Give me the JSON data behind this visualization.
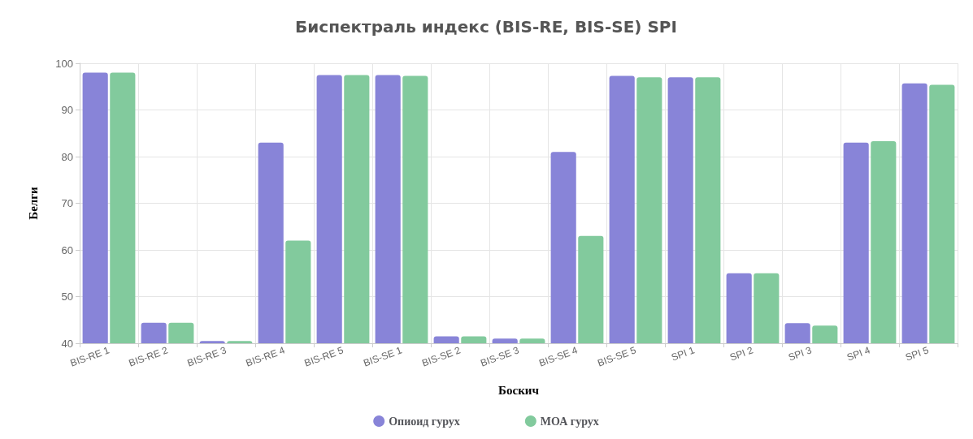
{
  "chart_data": {
    "type": "bar",
    "title": "Биспектраль индекс (BIS-RE, BIS-SE) SPI",
    "xlabel": "Боскич",
    "ylabel": "Белги",
    "categories": [
      "BIS-RE 1",
      "BIS-RE 2",
      "BIS-RE 3",
      "BIS-RE 4",
      "BIS-RE 5",
      "BIS-SE 1",
      "BIS-SE 2",
      "BIS-SE 3",
      "BIS-SE 4",
      "BIS-SE 5",
      "SPI 1",
      "SPI 2",
      "SPI 3",
      "SPI 4",
      "SPI 5"
    ],
    "series": [
      {
        "name": "Опиоид гурух",
        "color": "#8884d8",
        "values": [
          98,
          44.4,
          40.5,
          83,
          97.5,
          97.5,
          41.5,
          41,
          81,
          97.3,
          97,
          55,
          44.3,
          83,
          95.7
        ]
      },
      {
        "name": "МОА гурух",
        "color": "#82ca9d",
        "values": [
          98,
          44.4,
          40.5,
          62,
          97.5,
          97.3,
          41.5,
          41,
          63,
          97,
          97,
          55,
          43.8,
          83.3,
          95.4
        ]
      }
    ],
    "ylim": [
      40,
      100
    ],
    "yticks": [
      40,
      50,
      60,
      70,
      80,
      90,
      100
    ],
    "grid": true,
    "legend": "bottom"
  }
}
